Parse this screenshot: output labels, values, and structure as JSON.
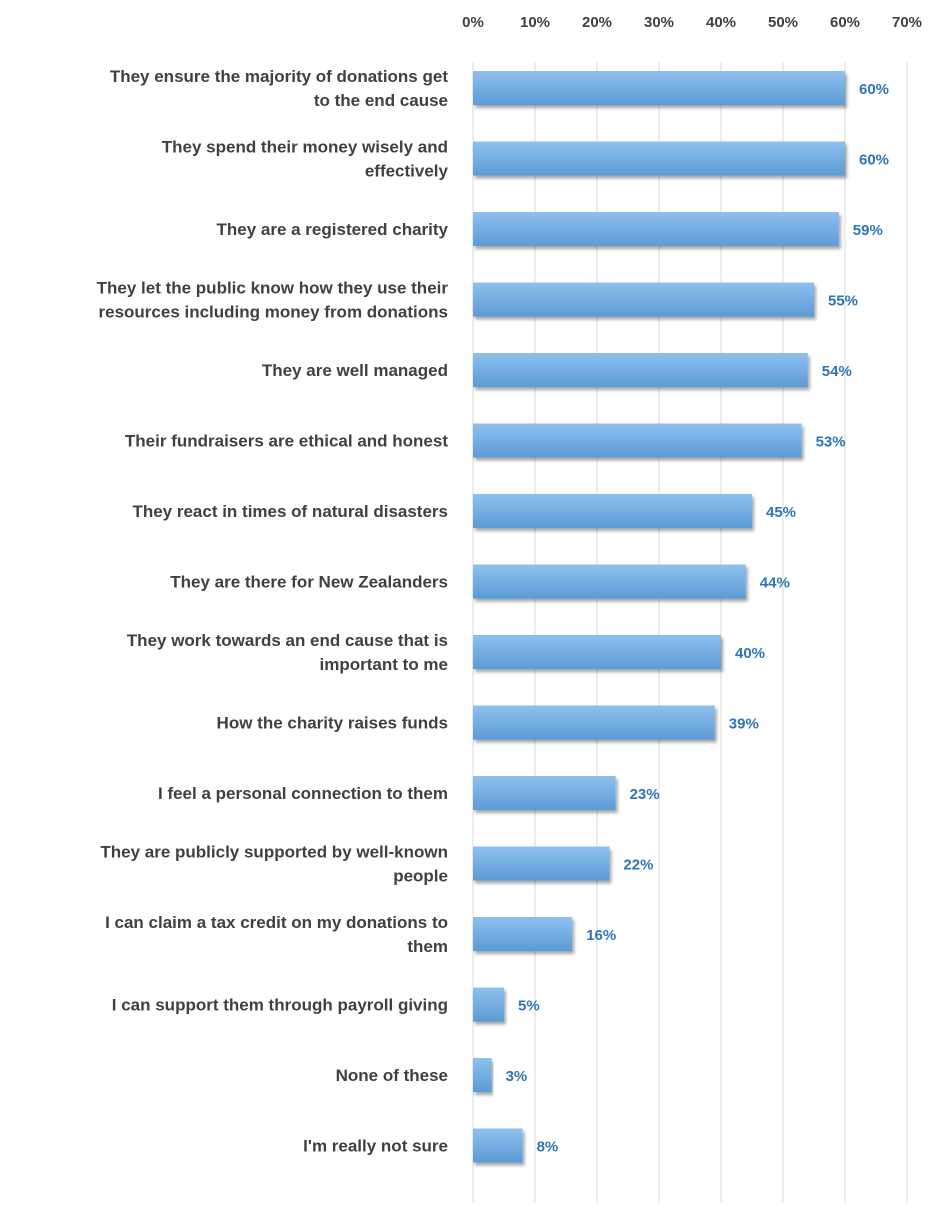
{
  "chart_data": {
    "type": "bar",
    "orientation": "horizontal",
    "title": "",
    "xlabel": "",
    "ylabel": "",
    "xlim": [
      0,
      70
    ],
    "ticks": [
      "0%",
      "10%",
      "20%",
      "30%",
      "40%",
      "50%",
      "60%",
      "70%"
    ],
    "tick_position": "top",
    "grid": true,
    "legend": "none",
    "bar_color": "#5b9bd5",
    "bar_color_light": "#8ec0ee",
    "label_color": "#2e75b6",
    "categories": [
      [
        "They ensure the majority of donations get",
        "to the end cause"
      ],
      [
        "They spend their money wisely and",
        "effectively"
      ],
      [
        "They are a registered charity"
      ],
      [
        "They let the public know how they use their",
        "resources including money from donations"
      ],
      [
        "They are well managed"
      ],
      [
        "Their fundraisers are ethical and honest"
      ],
      [
        "They react in times of natural disasters"
      ],
      [
        "They are there for New Zealanders"
      ],
      [
        "They work towards an end cause that is",
        "important to me"
      ],
      [
        "How the charity raises funds"
      ],
      [
        "I feel a personal connection to them"
      ],
      [
        "They are publicly supported by well-known",
        "people"
      ],
      [
        "I can claim a tax credit on my donations to",
        "them"
      ],
      [
        "I can support them through payroll giving"
      ],
      [
        "None of these"
      ],
      [
        "I'm really not sure"
      ]
    ],
    "values": [
      60,
      60,
      59,
      55,
      54,
      53,
      45,
      44,
      40,
      39,
      23,
      22,
      16,
      5,
      3,
      8
    ],
    "value_labels": [
      "60%",
      "60%",
      "59%",
      "55%",
      "54%",
      "53%",
      "45%",
      "44%",
      "40%",
      "39%",
      "23%",
      "22%",
      "16%",
      "5%",
      "3%",
      "8%"
    ]
  }
}
